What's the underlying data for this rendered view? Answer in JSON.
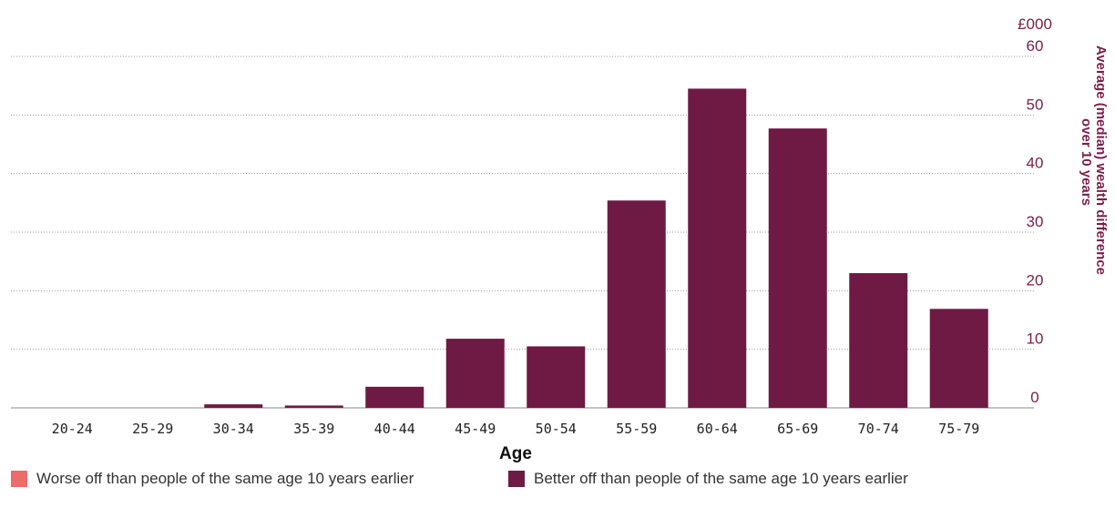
{
  "chart_data": {
    "type": "bar",
    "categories": [
      "20-24",
      "25-29",
      "30-34",
      "35-39",
      "40-44",
      "45-49",
      "50-54",
      "55-59",
      "60-64",
      "65-69",
      "70-74",
      "75-79"
    ],
    "series": [
      {
        "name": "Better off than people of the same age 10 years earlier",
        "color": "#6e1a44",
        "values": [
          0,
          0,
          0.6,
          0.4,
          3.6,
          11.8,
          10.5,
          35.4,
          54.5,
          47.7,
          23.0,
          16.9
        ]
      },
      {
        "name": "Worse off than people of the same age 10 years earlier",
        "color": "#ef6a6a",
        "values": [
          0,
          0,
          0,
          0,
          0,
          0,
          0,
          0,
          0,
          0,
          0,
          0
        ]
      }
    ],
    "xlabel": "Age",
    "ylabel": "Average (median) wealth difference over 10 years",
    "y_unit": "£000",
    "yticks": [
      0,
      10,
      20,
      30,
      40,
      50,
      60
    ],
    "ylim": [
      0,
      60
    ],
    "grid": true,
    "legend_position": "bottom"
  }
}
